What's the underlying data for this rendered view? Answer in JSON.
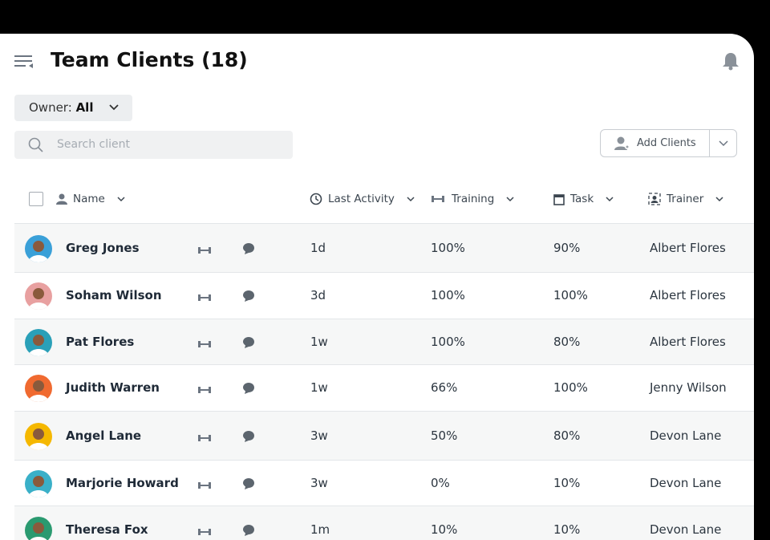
{
  "header": {
    "title": "Team Clients (18)"
  },
  "filters": {
    "owner_label": "Owner:",
    "owner_value": "All",
    "search_placeholder": "Search client"
  },
  "actions": {
    "add_clients": "Add Clients"
  },
  "table": {
    "columns": [
      "Name",
      "Last Activity",
      "Training",
      "Task",
      "Trainer"
    ],
    "rows": [
      [
        "Greg Jones",
        "1d",
        "100%",
        "90%",
        "Albert Flores"
      ],
      [
        "Soham Wilson",
        "3d",
        "100%",
        "100%",
        "Albert Flores"
      ],
      [
        "Pat Flores",
        "1w",
        "100%",
        "80%",
        "Albert Flores"
      ],
      [
        "Judith Warren",
        "1w",
        "66%",
        "100%",
        "Jenny Wilson"
      ],
      [
        "Angel Lane",
        "3w",
        "50%",
        "80%",
        "Devon Lane"
      ],
      [
        "Marjorie Howard",
        "3w",
        "0%",
        "10%",
        "Devon Lane"
      ],
      [
        "Theresa Fox",
        "1m",
        "10%",
        "10%",
        "Devon Lane"
      ]
    ]
  }
}
